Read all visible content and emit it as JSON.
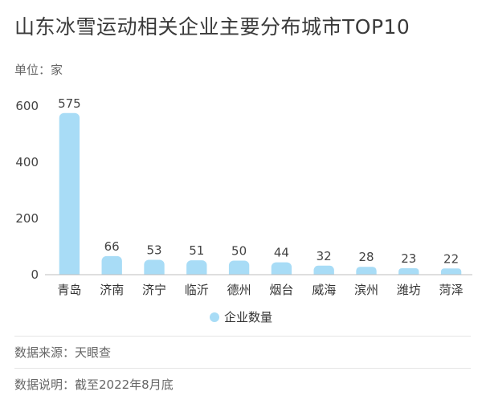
{
  "title": "山东冰雪运动相关企业主要分布城市TOP10",
  "unit": "单位：家",
  "colors": {
    "bar": "#a8dcf6",
    "axis": "#bdbdbd"
  },
  "chart_data": {
    "type": "bar",
    "categories": [
      "青岛",
      "济南",
      "济宁",
      "临沂",
      "德州",
      "烟台",
      "威海",
      "滨州",
      "潍坊",
      "菏泽"
    ],
    "series": [
      {
        "name": "企业数量",
        "values": [
          575,
          66,
          53,
          51,
          50,
          44,
          32,
          28,
          23,
          22
        ]
      }
    ],
    "ylim": [
      0,
      600
    ],
    "yticks": [
      0,
      200,
      400,
      600
    ],
    "grid": false,
    "legend_position": "bottom"
  },
  "legend": {
    "label": "企业数量"
  },
  "source": "数据来源：天眼查",
  "note": "数据说明：截至2022年8月底"
}
